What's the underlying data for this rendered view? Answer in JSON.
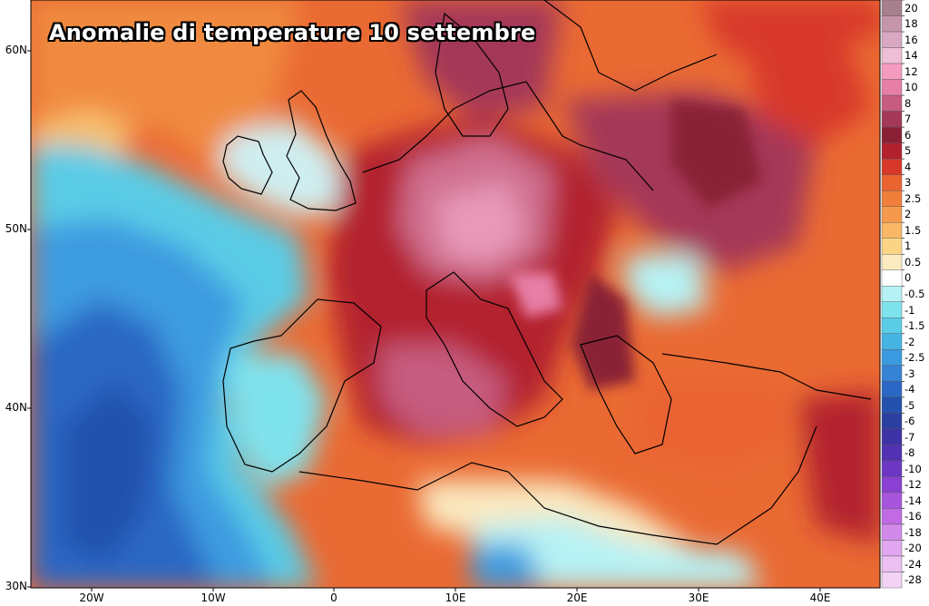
{
  "title": "Anomalie di temperature 10 settembre",
  "latitude_labels": [
    "60N",
    "50N",
    "40N",
    "30N"
  ],
  "longitude_labels": [
    "20W",
    "10W",
    "0",
    "10E",
    "20E",
    "30E",
    "40E"
  ],
  "colorbar": {
    "labels": [
      "20",
      "18",
      "16",
      "14",
      "12",
      "10",
      "8",
      "7",
      "6",
      "5",
      "4",
      "3",
      "2.5",
      "2",
      "1.5",
      "1",
      "0.5",
      "0",
      "-0.5",
      "-1",
      "-1.5",
      "-2",
      "-2.5",
      "-3",
      "-4",
      "-5",
      "-6",
      "-7",
      "-8",
      "-10",
      "-12",
      "-14",
      "-16",
      "-18",
      "-20",
      "-24",
      "-28"
    ],
    "colors": [
      "#a87f8e",
      "#c596aa",
      "#d9a8c2",
      "#eebdd6",
      "#f59bbf",
      "#e77ea5",
      "#c65c7f",
      "#a43858",
      "#8a2036",
      "#b3202d",
      "#d8382a",
      "#ea6430",
      "#f07f3c",
      "#f59a4c",
      "#f8b865",
      "#fbd585",
      "#fcebc0",
      "#ffffff",
      "#b6f2f4",
      "#7fe3ee",
      "#5acce6",
      "#46b4e3",
      "#3c9be0",
      "#3683d6",
      "#2b67c4",
      "#2451ad",
      "#2a3f9f",
      "#3d32a6",
      "#5231b2",
      "#6b37c3",
      "#8a40d2",
      "#a855dd",
      "#c06ae3",
      "#d28aea",
      "#e0a6ef",
      "#ebbff2",
      "#f3d2f3"
    ]
  }
}
